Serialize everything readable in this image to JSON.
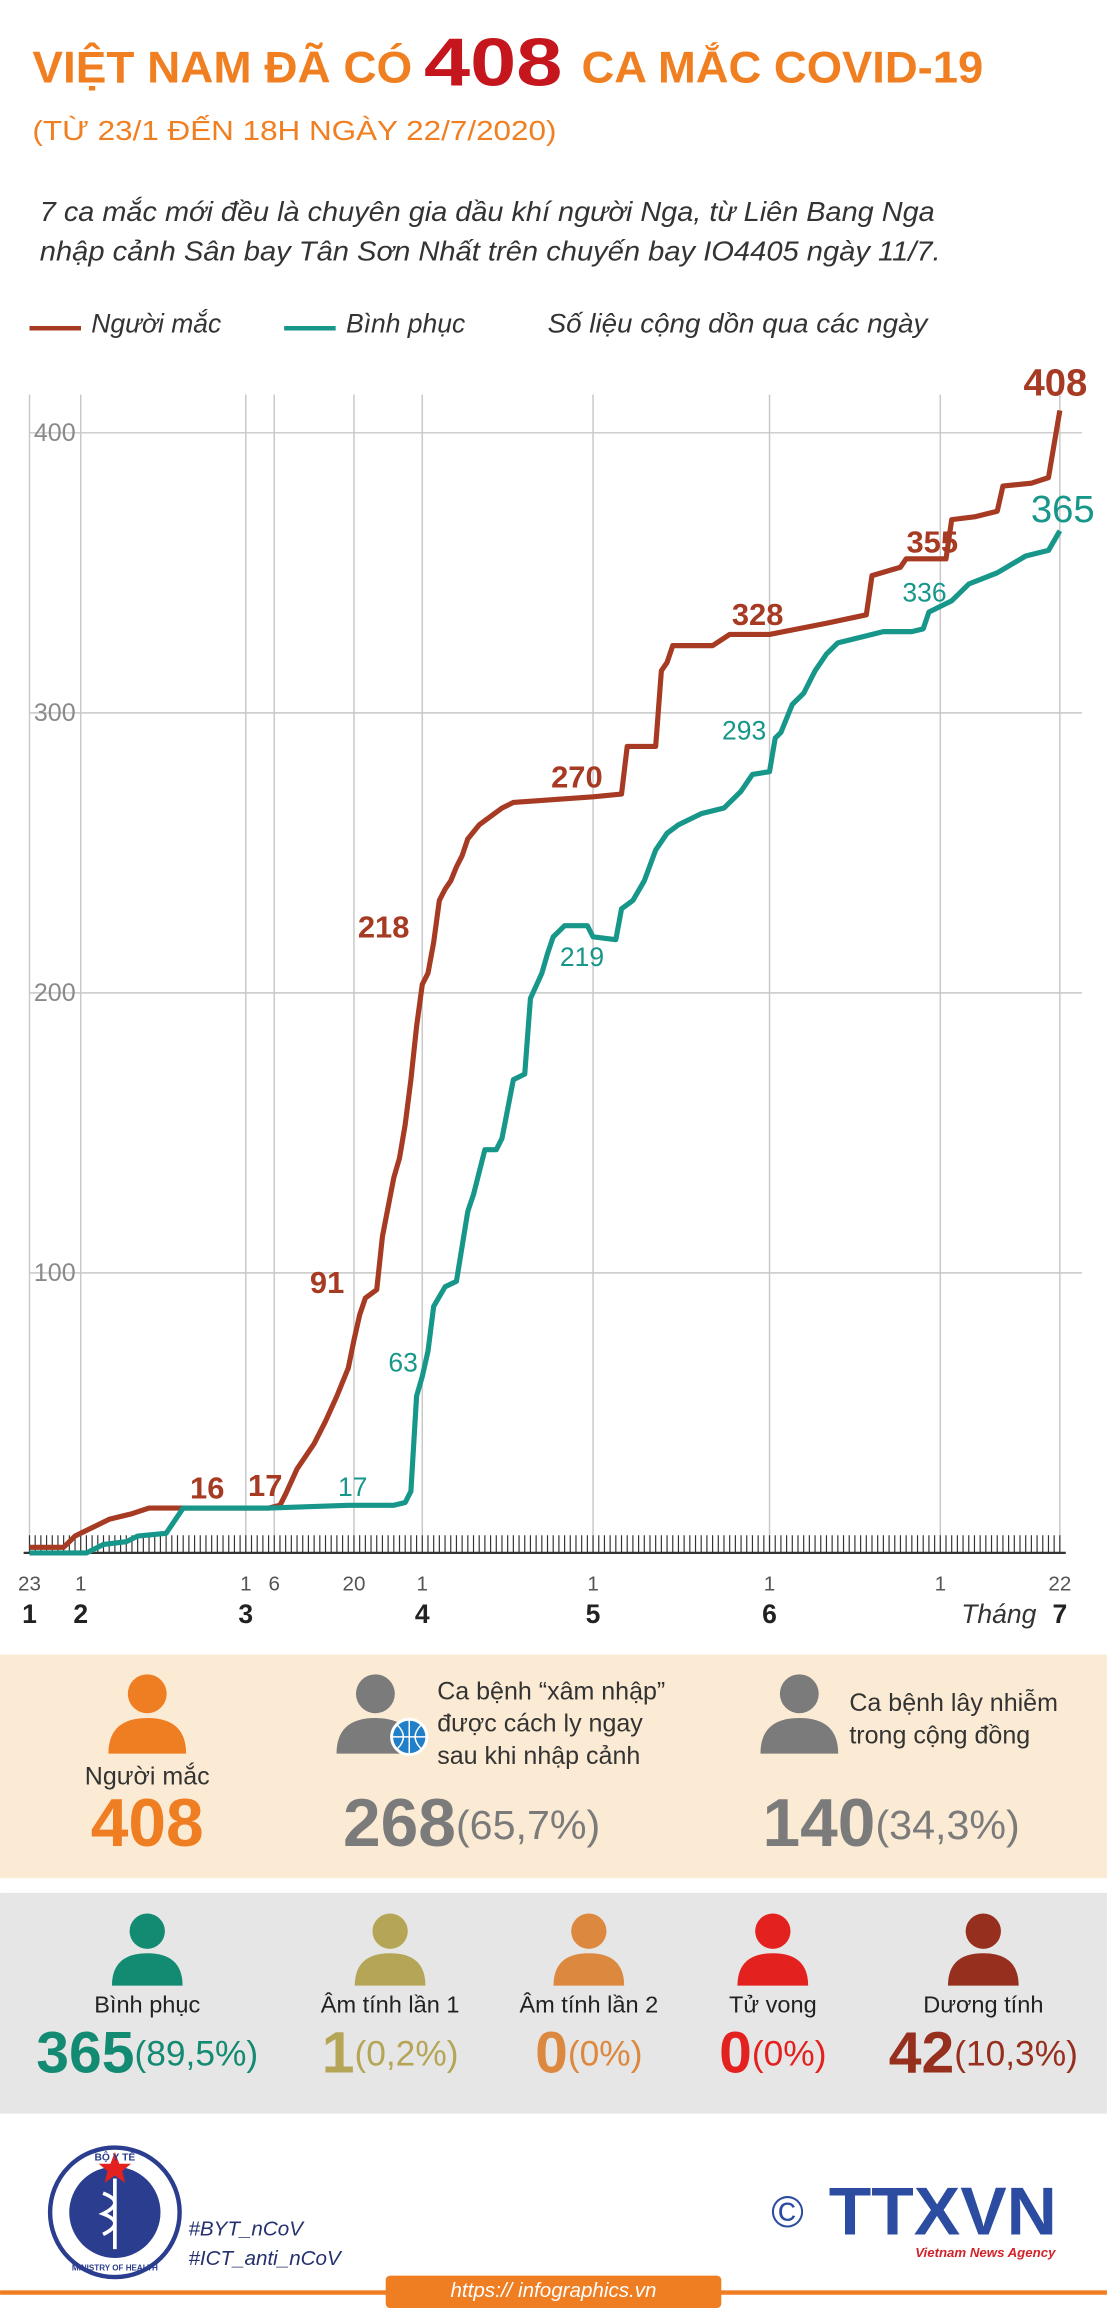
{
  "header": {
    "title_prefix": "VIỆT NAM ĐÃ CÓ",
    "title_number": 408,
    "title_suffix": "CA MẮC COVID-19",
    "subtitle": "(TỪ 23/1 ĐẾN 18H NGÀY 22/7/2020)",
    "description": [
      "7 ca mắc mới đều là chuyên gia dầu khí người Nga, từ Liên Bang Nga",
      "nhập cảnh Sân bay Tân Sơn Nhất trên chuyến bay IO4405 ngày 11/7."
    ]
  },
  "chart_data": {
    "type": "line",
    "legend_note": "Số liệu cộng dồn qua các ngày",
    "x_axis_label": "Tháng",
    "xlim": [
      0,
      181
    ],
    "ylim": [
      0,
      420
    ],
    "yticks": [
      100,
      200,
      300,
      400
    ],
    "xticks": [
      {
        "value": 0,
        "label": "23"
      },
      {
        "value": 9,
        "label": "1"
      },
      {
        "value": 38,
        "label": "1"
      },
      {
        "value": 43,
        "label": "6"
      },
      {
        "value": 57,
        "label": "20"
      },
      {
        "value": 69,
        "label": "1"
      },
      {
        "value": 99,
        "label": "1"
      },
      {
        "value": 130,
        "label": "1"
      },
      {
        "value": 160,
        "label": "1"
      },
      {
        "value": 181,
        "label": "22"
      }
    ],
    "month_ticks": [
      {
        "value": 0,
        "label": "1"
      },
      {
        "value": 9,
        "label": "2"
      },
      {
        "value": 38,
        "label": "3"
      },
      {
        "value": 69,
        "label": "4"
      },
      {
        "value": 99,
        "label": "5"
      },
      {
        "value": 130,
        "label": "6"
      },
      {
        "value": 181,
        "label": "7"
      }
    ],
    "grid": true,
    "series": [
      {
        "name": "Người mắc",
        "color": "#a63a22",
        "x": [
          0,
          6,
          8,
          10,
          12,
          14,
          18,
          21,
          42,
          44,
          45,
          47,
          50,
          52,
          54,
          56,
          57,
          58,
          59,
          61,
          62,
          64,
          65,
          66,
          67,
          68,
          69,
          70,
          71,
          72,
          73,
          74,
          75,
          76,
          77,
          79,
          81,
          83,
          85,
          99,
          104,
          105,
          110,
          111,
          112,
          113,
          120,
          123,
          130,
          140,
          147,
          148,
          153,
          154,
          161,
          162,
          166,
          170,
          171,
          176,
          179,
          181
        ],
        "values": [
          2,
          2,
          6,
          8,
          10,
          12,
          14,
          16,
          16,
          17,
          21,
          30,
          39,
          47,
          56,
          66,
          76,
          85,
          91,
          94,
          113,
          134,
          141,
          153,
          169,
          188,
          203,
          207,
          218,
          233,
          237,
          240,
          245,
          249,
          255,
          260,
          263,
          266,
          268,
          270,
          271,
          288,
          288,
          315,
          318,
          324,
          324,
          328,
          328,
          332,
          335,
          349,
          352,
          355,
          355,
          369,
          370,
          372,
          381,
          382,
          384,
          408
        ],
        "labels": [
          {
            "x": 32,
            "value": 16
          },
          {
            "x": 44,
            "value": 17
          },
          {
            "x": 59,
            "value": 91
          },
          {
            "x": 71,
            "value": 218
          },
          {
            "x": 99,
            "value": 270
          },
          {
            "x": 123,
            "value": 328
          },
          {
            "x": 156,
            "value": 355
          },
          {
            "x": 181,
            "value": 408
          }
        ]
      },
      {
        "name": "Bình phục",
        "color": "#17968a",
        "x": [
          0,
          10,
          13,
          17,
          19,
          24,
          27,
          42,
          56,
          64,
          66,
          67,
          68,
          69,
          70,
          71,
          73,
          75,
          77,
          78,
          80,
          82,
          83,
          85,
          87,
          88,
          90,
          91,
          92,
          94,
          98,
          99,
          103,
          104,
          106,
          108,
          110,
          112,
          114,
          118,
          122,
          125,
          127,
          130,
          131,
          132,
          134,
          136,
          138,
          140,
          142,
          146,
          150,
          155,
          157,
          158,
          162,
          165,
          170,
          175,
          179,
          181
        ],
        "values": [
          0,
          0,
          3,
          4,
          6,
          7,
          16,
          16,
          17,
          17,
          18,
          22,
          56,
          63,
          72,
          88,
          95,
          97,
          122,
          128,
          144,
          144,
          148,
          169,
          171,
          198,
          207,
          214,
          220,
          224,
          224,
          220,
          219,
          230,
          233,
          240,
          251,
          257,
          260,
          264,
          266,
          272,
          278,
          279,
          291,
          293,
          303,
          307,
          315,
          321,
          325,
          327,
          329,
          329,
          330,
          336,
          340,
          346,
          350,
          356,
          358,
          365
        ],
        "labels": [
          {
            "x": 56,
            "value": 17
          },
          {
            "x": 69,
            "value": 63
          },
          {
            "x": 103,
            "value": 219
          },
          {
            "x": 132,
            "value": 293
          },
          {
            "x": 158,
            "value": 336
          },
          {
            "x": 181,
            "value": 365
          }
        ]
      }
    ]
  },
  "summary": {
    "background": "#fcebd4",
    "items": [
      {
        "label": [
          "Người mắc"
        ],
        "value": 408,
        "color": "#ef7d22"
      },
      {
        "label": [
          "Ca bệnh “xâm nhập”",
          "được cách ly ngay",
          "sau khi nhập cảnh"
        ],
        "value": 268,
        "share": "(65,7%)",
        "color": "#7b7b7b"
      },
      {
        "label": [
          "Ca bệnh lây nhiễm",
          "trong cộng đồng"
        ],
        "value": 140,
        "share": "(34,3%)",
        "color": "#7b7b7b"
      }
    ]
  },
  "status": {
    "background": "#e6e6e6",
    "items": [
      {
        "label": "Bình phục",
        "value": 365,
        "share": "(89,5%)",
        "color": "#138a72"
      },
      {
        "label": "Âm tính lần 1",
        "value": 1,
        "share": "(0,2%)",
        "color": "#b5a657"
      },
      {
        "label": "Âm tính lần 2",
        "value": 0,
        "share": "(0%)",
        "color": "#dc883e"
      },
      {
        "label": "Tử vong",
        "value": 0,
        "share": "(0%)",
        "color": "#e3211f"
      },
      {
        "label": "Dương tính",
        "value": 42,
        "share": "(10,3%)",
        "color": "#962f1e"
      }
    ]
  },
  "footer": {
    "logo_top": "BỘ Y TẾ",
    "logo_bottom": "MINISTRY OF HEALTH",
    "hashtags": [
      "#BYT_nCoV",
      "#ICT_anti_nCoV"
    ],
    "copyright": "©",
    "agency": "TTXVN",
    "agency_name": "Vietnam News Agency",
    "url": "https:// infographics.vn"
  }
}
